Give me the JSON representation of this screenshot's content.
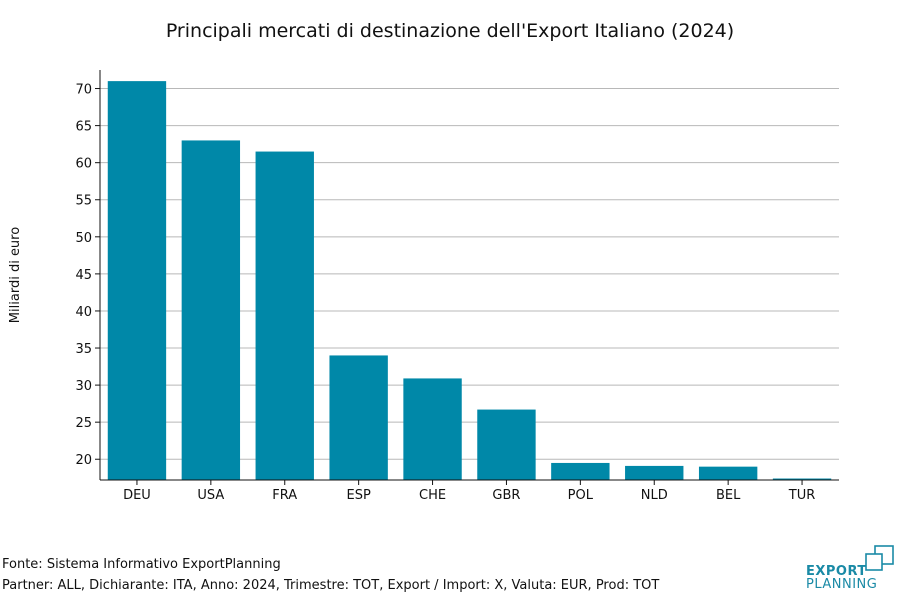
{
  "chart_data": {
    "type": "bar",
    "title": "Principali mercati di destinazione dell'Export Italiano (2024)",
    "xlabel": "",
    "ylabel": "Miliardi di euro",
    "categories": [
      "DEU",
      "USA",
      "FRA",
      "ESP",
      "CHE",
      "GBR",
      "POL",
      "NLD",
      "BEL",
      "TUR"
    ],
    "values": [
      71.0,
      63.0,
      61.5,
      34.0,
      30.9,
      26.7,
      19.5,
      19.1,
      19.0,
      17.4
    ],
    "ylim": [
      17.2,
      72.5
    ],
    "yticks": [
      20,
      25,
      30,
      35,
      40,
      45,
      50,
      55,
      60,
      65,
      70
    ],
    "grid": true,
    "bar_color": "#0088a8"
  },
  "footer": {
    "source": "Fonte: Sistema Informativo ExportPlanning",
    "details": "Partner: ALL, Dichiarante: ITA, Anno: 2024, Trimestre: TOT, Export / Import: X, Valuta: EUR, Prod: TOT"
  },
  "logo": {
    "line1": "EXPORT",
    "line2": "PLANNING",
    "color": "#1a8aa6"
  }
}
